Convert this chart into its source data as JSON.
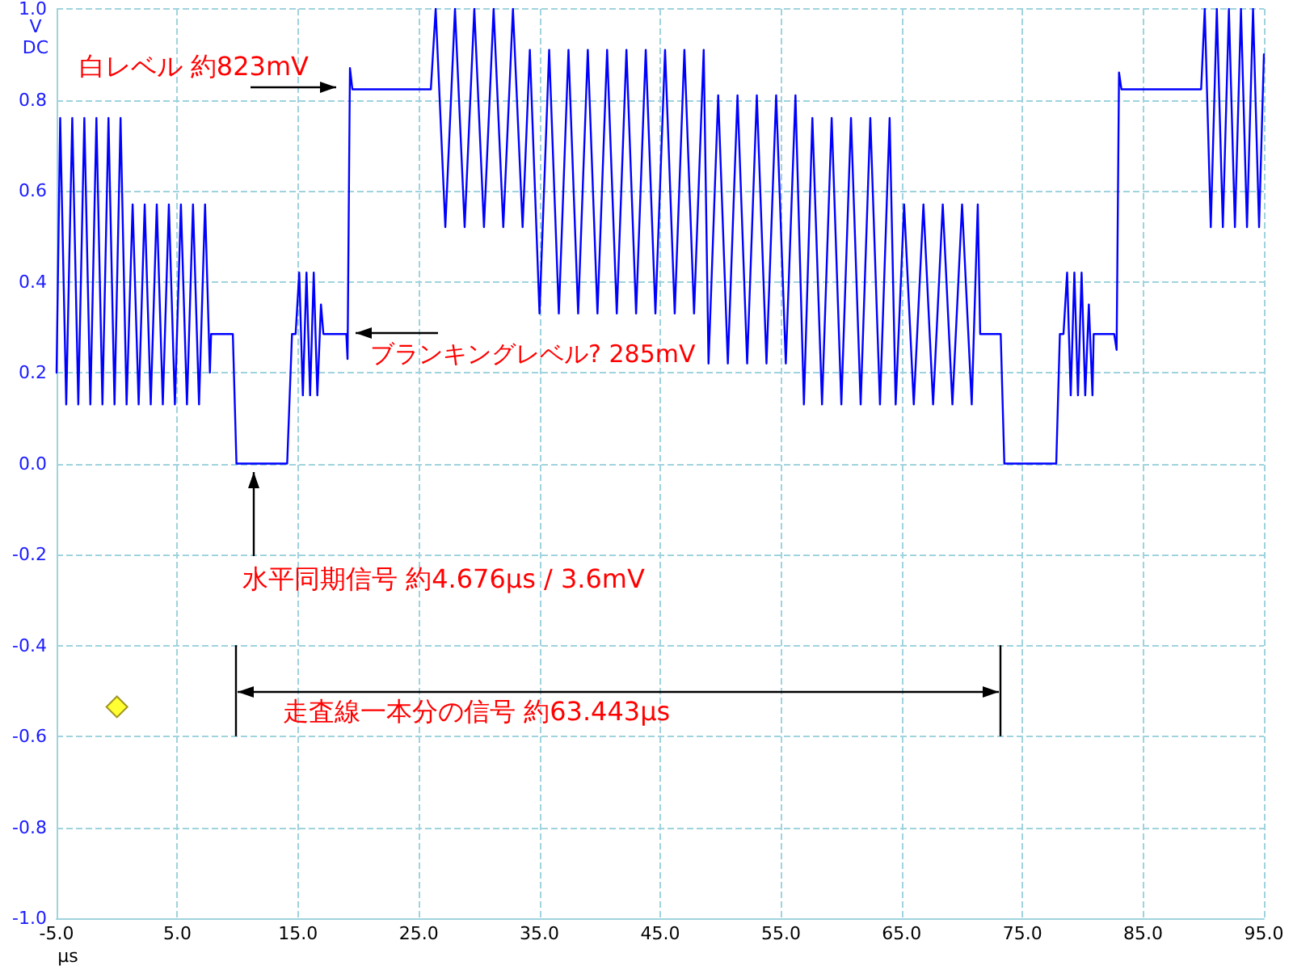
{
  "chart_data": {
    "type": "line",
    "xlabel": "μs",
    "ylabel": "V\nDC",
    "x": [
      -5,
      -4.7,
      -4.2,
      -3.7,
      -3.2,
      -2.7,
      -2.2,
      -1.7,
      -1.2,
      -0.7,
      -0.2,
      0.3,
      0.8,
      1.3,
      1.8,
      2.3,
      2.8,
      3.3,
      3.8,
      4.3,
      4.8,
      5.3,
      5.8,
      6.3,
      6.8,
      7.3,
      7.7,
      7.8,
      9.6,
      9.9,
      14.1,
      14.5,
      14.8,
      15.1,
      15.4,
      15.7,
      16.0,
      16.3,
      16.6,
      16.9,
      17.1,
      19.0,
      19.1,
      19.3,
      19.5,
      26.0,
      26.4,
      27.2,
      28.0,
      28.8,
      29.6,
      30.4,
      31.2,
      32.0,
      32.8,
      33.6,
      34.2,
      35.0,
      35.8,
      36.6,
      37.4,
      38.2,
      39.0,
      39.8,
      40.6,
      41.4,
      42.2,
      43.0,
      43.8,
      44.6,
      45.4,
      46.2,
      47.0,
      47.8,
      48.6,
      49.0,
      49.8,
      50.6,
      51.4,
      52.2,
      53.0,
      53.8,
      54.6,
      55.4,
      56.2,
      56.9,
      57.6,
      58.4,
      59.2,
      60.0,
      60.8,
      61.6,
      62.4,
      63.2,
      64.0,
      64.5,
      65.2,
      66.0,
      66.8,
      67.6,
      68.4,
      69.2,
      70.0,
      70.8,
      71.3,
      71.5,
      73.2,
      73.5,
      77.8,
      78.1,
      78.4,
      78.7,
      79.0,
      79.3,
      79.6,
      79.9,
      80.2,
      80.5,
      80.8,
      80.9,
      82.6,
      82.8,
      83.0,
      83.2,
      89.8,
      90.1,
      90.6,
      91.1,
      91.6,
      92.1,
      92.6,
      93.1,
      93.6,
      94.1,
      94.6,
      95
    ],
    "series": [
      {
        "color": "#0000ff",
        "marker": "none",
        "line_style": "solid",
        "values": [
          0.2,
          0.76,
          0.13,
          0.76,
          0.13,
          0.76,
          0.13,
          0.76,
          0.13,
          0.76,
          0.13,
          0.76,
          0.13,
          0.57,
          0.13,
          0.57,
          0.13,
          0.57,
          0.13,
          0.57,
          0.13,
          0.57,
          0.13,
          0.57,
          0.13,
          0.57,
          0.2,
          0.285,
          0.285,
          0,
          0,
          0.285,
          0.285,
          0.42,
          0.15,
          0.42,
          0.15,
          0.42,
          0.15,
          0.35,
          0.285,
          0.285,
          0.23,
          0.87,
          0.823,
          0.823,
          1.0,
          0.52,
          1.0,
          0.52,
          1.0,
          0.52,
          1.0,
          0.52,
          1.0,
          0.52,
          0.91,
          0.33,
          0.91,
          0.33,
          0.91,
          0.33,
          0.91,
          0.33,
          0.91,
          0.33,
          0.91,
          0.33,
          0.91,
          0.33,
          0.91,
          0.33,
          0.91,
          0.33,
          0.91,
          0.22,
          0.81,
          0.22,
          0.81,
          0.22,
          0.81,
          0.22,
          0.81,
          0.22,
          0.81,
          0.13,
          0.76,
          0.13,
          0.76,
          0.13,
          0.76,
          0.13,
          0.76,
          0.13,
          0.76,
          0.13,
          0.57,
          0.13,
          0.57,
          0.13,
          0.57,
          0.13,
          0.57,
          0.13,
          0.57,
          0.285,
          0.285,
          0,
          0,
          0.285,
          0.285,
          0.42,
          0.15,
          0.42,
          0.15,
          0.42,
          0.15,
          0.35,
          0.15,
          0.285,
          0.285,
          0.25,
          0.86,
          0.823,
          0.823,
          1.0,
          0.52,
          1.0,
          0.52,
          1.0,
          0.52,
          1.0,
          0.52,
          1.0,
          0.52,
          0.9
        ]
      },
      {
        "type": "scatter",
        "color": "#ffff00",
        "marker": "diamond",
        "x": [
          0
        ],
        "values": [
          -0.535
        ]
      }
    ],
    "xlim": [
      -5,
      95
    ],
    "xticks": [
      {
        "value": -5,
        "label": "-5.0"
      },
      {
        "value": 5,
        "label": "5.0"
      },
      {
        "value": 15,
        "label": "15.0"
      },
      {
        "value": 25,
        "label": "25.0"
      },
      {
        "value": 35,
        "label": "35.0"
      },
      {
        "value": 45,
        "label": "45.0"
      },
      {
        "value": 55,
        "label": "55.0"
      },
      {
        "value": 65,
        "label": "65.0"
      },
      {
        "value": 75,
        "label": "75.0"
      },
      {
        "value": 85,
        "label": "85.0"
      },
      {
        "value": 95,
        "label": "95.0"
      }
    ],
    "ylim": [
      -1,
      1
    ],
    "yticks": [
      {
        "value": -1,
        "label": "-1.0"
      },
      {
        "value": -0.8,
        "label": "-0.8"
      },
      {
        "value": -0.6,
        "label": "-0.6"
      },
      {
        "value": -0.4,
        "label": "-0.4"
      },
      {
        "value": -0.2,
        "label": "-0.2"
      },
      {
        "value": 0,
        "label": "0.0"
      },
      {
        "value": 0.2,
        "label": "0.2"
      },
      {
        "value": 0.4,
        "label": "0.4"
      },
      {
        "value": 0.6,
        "label": "0.6"
      },
      {
        "value": 0.8,
        "label": "0.8"
      },
      {
        "value": 1,
        "label": "1.0"
      }
    ],
    "grid": true,
    "annotations": [
      "白レベル 約823mV",
      "ブランキングレベル? 285mV",
      "水平同期信号 約4.676μs / 3.6mV",
      "走査線一本分の信号 約63.443μs"
    ]
  }
}
